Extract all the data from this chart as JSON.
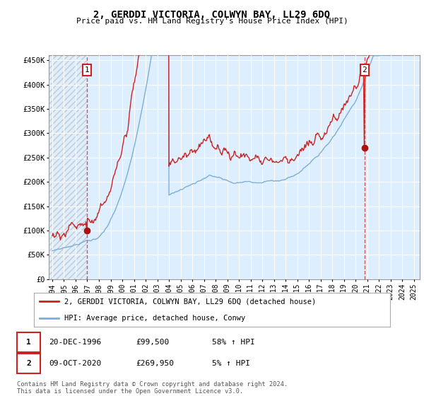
{
  "title": "2, GERDDI VICTORIA, COLWYN BAY, LL29 6DQ",
  "subtitle": "Price paid vs. HM Land Registry's House Price Index (HPI)",
  "xlim_start": 1993.7,
  "xlim_end": 2025.5,
  "ylim": [
    0,
    460000
  ],
  "yticks": [
    0,
    50000,
    100000,
    150000,
    200000,
    250000,
    300000,
    350000,
    400000,
    450000
  ],
  "ytick_labels": [
    "£0",
    "£50K",
    "£100K",
    "£150K",
    "£200K",
    "£250K",
    "£300K",
    "£350K",
    "£400K",
    "£450K"
  ],
  "xticks": [
    1994,
    1995,
    1996,
    1997,
    1998,
    1999,
    2000,
    2001,
    2002,
    2003,
    2004,
    2005,
    2006,
    2007,
    2008,
    2009,
    2010,
    2011,
    2012,
    2013,
    2014,
    2015,
    2016,
    2017,
    2018,
    2019,
    2020,
    2021,
    2022,
    2023,
    2024,
    2025
  ],
  "hpi_color": "#7bafd4",
  "price_color": "#cc2222",
  "marker_color": "#aa1111",
  "dashed_line_color": "#cc4444",
  "sale1_year": 1996.97,
  "sale1_price": 99500,
  "sale2_year": 2020.77,
  "sale2_price": 269950,
  "legend_line1": "2, GERDDI VICTORIA, COLWYN BAY, LL29 6DQ (detached house)",
  "legend_line2": "HPI: Average price, detached house, Conwy",
  "bg_color": "#ffffff",
  "plot_bg_color": "#ddeeff",
  "grid_color": "#ffffff",
  "hatch_color": "#c8c8c8"
}
